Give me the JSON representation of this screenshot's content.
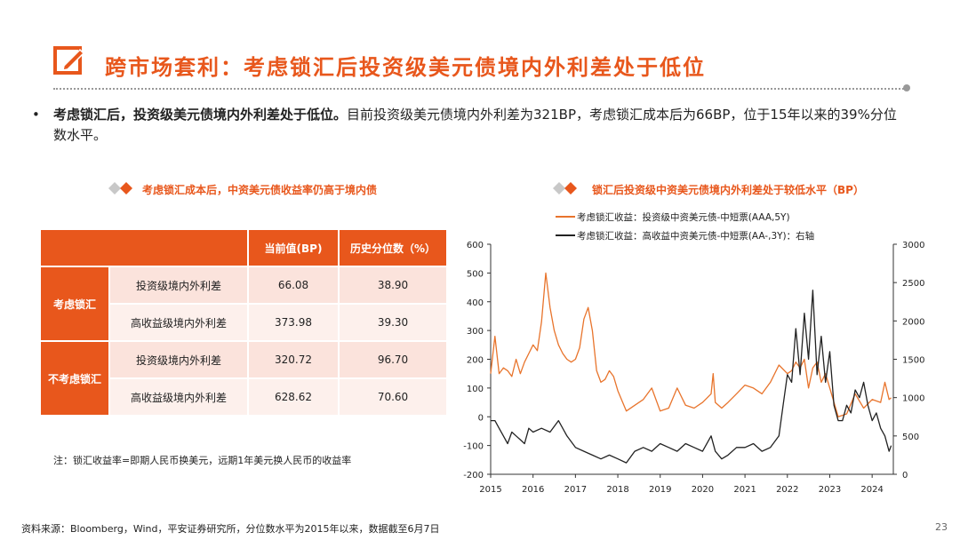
{
  "header": {
    "title": "跨市场套利：考虑锁汇后投资级美元债境内外利差处于低位",
    "icon": "edit-icon",
    "accent_color": "#e8571c"
  },
  "bullet": {
    "bold": "考虑锁汇后，投资级美元债境内外利差处于低位。",
    "rest": "目前投资级美元债境内外利差为321BP，考虑锁汇成本后为66BP，位于15年以来的39%分位数水平。"
  },
  "table_section": {
    "subtitle": "考虑锁汇成本后，中资美元债收益率仍高于境内债",
    "headers": [
      "当前值(BP)",
      "历史分位数（%）"
    ],
    "groups": [
      {
        "label": "考虑锁汇",
        "rows": [
          {
            "name": "投资级境内外利差",
            "current": "66.08",
            "pct": "38.90"
          },
          {
            "name": "高收益级境内外利差",
            "current": "373.98",
            "pct": "39.30"
          }
        ]
      },
      {
        "label": "不考虑锁汇",
        "rows": [
          {
            "name": "投资级境内外利差",
            "current": "320.72",
            "pct": "96.70"
          },
          {
            "name": "高收益级境内外利差",
            "current": "628.62",
            "pct": "70.60"
          }
        ]
      }
    ],
    "note": "注：锁汇收益率=即期人民币换美元，远期1年美元换人民币的收益率"
  },
  "chart_data": {
    "type": "line",
    "title": "锁汇后投资级中资美元债境内外利差处于较低水平（BP）",
    "x_ticks": [
      "2015",
      "2016",
      "2017",
      "2018",
      "2019",
      "2020",
      "2021",
      "2022",
      "2023",
      "2024"
    ],
    "xlim": [
      2015.0,
      2024.5
    ],
    "left_axis": {
      "ylim": [
        -200,
        600
      ],
      "ticks": [
        "-200",
        "-100",
        "0",
        "100",
        "200",
        "300",
        "400",
        "500",
        "600"
      ]
    },
    "right_axis": {
      "ylim": [
        0,
        3000
      ],
      "ticks": [
        "0",
        "500",
        "1000",
        "1500",
        "2000",
        "2500",
        "3000"
      ]
    },
    "series": [
      {
        "name": "考虑锁汇收益：投资级中资美元债-中短票(AAA,5Y)",
        "axis": "left",
        "color": "#e8742c",
        "x": [
          2015.0,
          2015.1,
          2015.2,
          2015.3,
          2015.4,
          2015.5,
          2015.6,
          2015.7,
          2015.8,
          2015.9,
          2016.0,
          2016.1,
          2016.2,
          2016.3,
          2016.4,
          2016.5,
          2016.6,
          2016.7,
          2016.8,
          2016.9,
          2017.0,
          2017.1,
          2017.2,
          2017.3,
          2017.4,
          2017.5,
          2017.6,
          2017.7,
          2017.8,
          2017.9,
          2018.0,
          2018.2,
          2018.4,
          2018.6,
          2018.8,
          2019.0,
          2019.2,
          2019.4,
          2019.6,
          2019.8,
          2020.0,
          2020.2,
          2020.25,
          2020.3,
          2020.45,
          2020.6,
          2020.8,
          2021.0,
          2021.2,
          2021.4,
          2021.6,
          2021.8,
          2022.0,
          2022.1,
          2022.2,
          2022.3,
          2022.4,
          2022.5,
          2022.6,
          2022.7,
          2022.8,
          2022.9,
          2023.0,
          2023.2,
          2023.4,
          2023.6,
          2023.8,
          2024.0,
          2024.2,
          2024.3,
          2024.4,
          2024.45
        ],
        "y": [
          150,
          280,
          150,
          170,
          160,
          140,
          200,
          150,
          190,
          220,
          250,
          230,
          330,
          500,
          380,
          300,
          250,
          220,
          200,
          190,
          200,
          240,
          340,
          380,
          300,
          160,
          120,
          130,
          160,
          140,
          90,
          20,
          40,
          60,
          100,
          20,
          30,
          100,
          40,
          30,
          50,
          80,
          150,
          50,
          30,
          50,
          80,
          110,
          100,
          80,
          120,
          180,
          150,
          160,
          190,
          170,
          200,
          100,
          170,
          190,
          120,
          150,
          100,
          0,
          10,
          80,
          30,
          60,
          50,
          120,
          60,
          66
        ]
      },
      {
        "name": "考虑锁汇收益：高收益中资美元债-中短票(AA-,3Y)：右轴",
        "axis": "right",
        "color": "#222222",
        "x": [
          2015.0,
          2015.1,
          2015.2,
          2015.3,
          2015.4,
          2015.5,
          2015.6,
          2015.7,
          2015.8,
          2015.9,
          2016.0,
          2016.2,
          2016.4,
          2016.6,
          2016.8,
          2017.0,
          2017.2,
          2017.4,
          2017.6,
          2017.8,
          2018.0,
          2018.2,
          2018.4,
          2018.6,
          2018.8,
          2019.0,
          2019.2,
          2019.4,
          2019.6,
          2019.8,
          2020.0,
          2020.2,
          2020.3,
          2020.45,
          2020.6,
          2020.8,
          2021.0,
          2021.2,
          2021.4,
          2021.6,
          2021.8,
          2021.9,
          2022.0,
          2022.1,
          2022.2,
          2022.3,
          2022.4,
          2022.5,
          2022.6,
          2022.7,
          2022.8,
          2022.9,
          2023.0,
          2023.1,
          2023.2,
          2023.3,
          2023.4,
          2023.5,
          2023.6,
          2023.7,
          2023.8,
          2023.9,
          2024.0,
          2024.1,
          2024.2,
          2024.3,
          2024.4,
          2024.45
        ],
        "y": [
          700,
          700,
          600,
          500,
          400,
          550,
          500,
          450,
          400,
          600,
          550,
          600,
          550,
          700,
          500,
          350,
          300,
          250,
          200,
          250,
          200,
          150,
          300,
          350,
          300,
          400,
          350,
          300,
          400,
          350,
          300,
          500,
          300,
          200,
          250,
          350,
          350,
          400,
          300,
          350,
          500,
          900,
          1300,
          1200,
          1900,
          1300,
          2100,
          1500,
          2400,
          1300,
          1800,
          1200,
          1600,
          900,
          700,
          700,
          900,
          800,
          1100,
          1000,
          1200,
          900,
          700,
          800,
          600,
          500,
          300,
          374
        ]
      }
    ],
    "legend_position": "top-left"
  },
  "footer": {
    "source": "资料来源：Bloomberg，Wind，平安证券研究所，分位数水平为2015年以来，数据截至6月7日",
    "page": "23"
  }
}
